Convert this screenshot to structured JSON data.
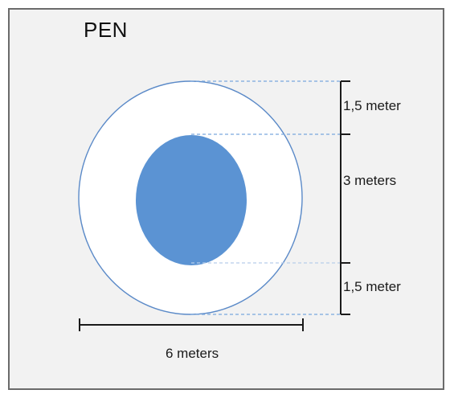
{
  "title": "PEN",
  "dimensions": {
    "top_ring_label": "1,5 meter",
    "center_label": "3 meters",
    "bottom_ring_label": "1,5 meter",
    "width_label": "6 meters"
  },
  "colors": {
    "background": "#f2f2f2",
    "outer_circle_fill": "#ffffff",
    "outer_circle_stroke": "#5b8ac8",
    "inner_circle_fill": "#5b93d3",
    "dimension_line": "#1a1a1a",
    "guide_line": "#7aa7dd"
  }
}
